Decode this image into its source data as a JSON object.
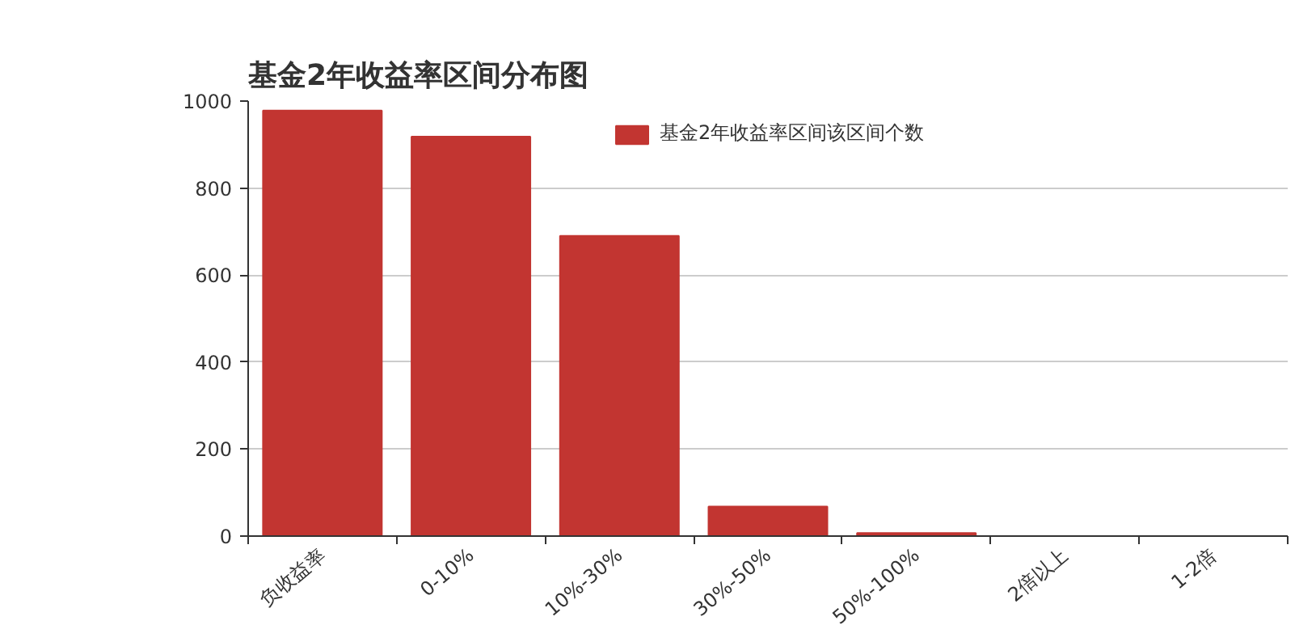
{
  "chart_data": {
    "type": "bar",
    "title": "基金2年收益率区间分布图",
    "categories": [
      "负收益率",
      "0-10%",
      "10%-30%",
      "30%-50%",
      "50%-100%",
      "2倍以上",
      "1-2倍"
    ],
    "series": [
      {
        "name": "基金2年收益率区间该区间个数",
        "color": "#c23531",
        "values": [
          978,
          918,
          690,
          68,
          7,
          0,
          0
        ]
      }
    ],
    "ylim": [
      0,
      1000
    ],
    "yticks": [
      0,
      200,
      400,
      600,
      800,
      1000
    ],
    "grid": "y",
    "legend": "top"
  }
}
